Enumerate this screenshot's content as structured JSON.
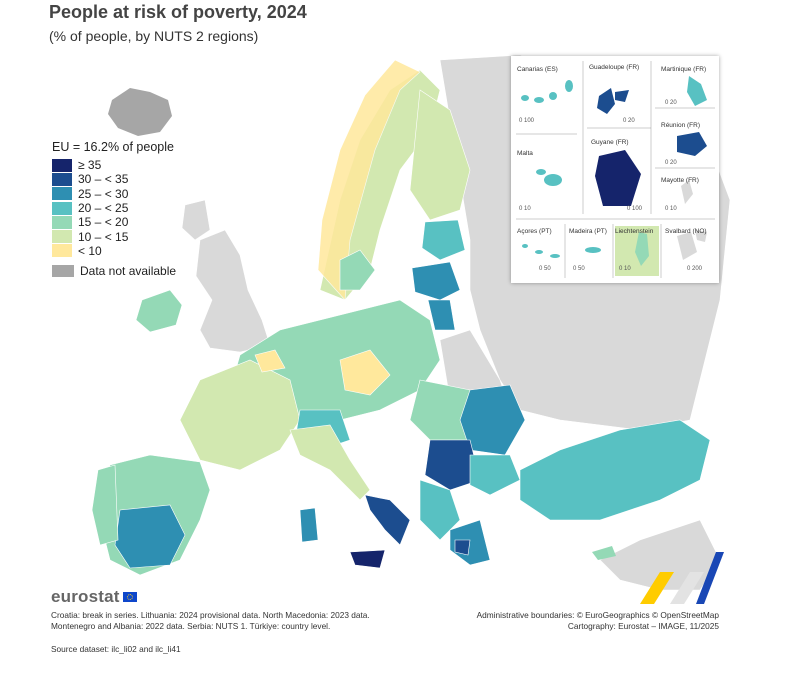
{
  "title": "People at risk of poverty, 2024",
  "subtitle": "(% of people, by NUTS 2 regions)",
  "legend": {
    "eu_average": "EU = 16.2% of people",
    "classes": [
      {
        "label": "≥ 35",
        "color": "#15246b"
      },
      {
        "label": "30 – < 35",
        "color": "#1c4d8f"
      },
      {
        "label": "25 – < 30",
        "color": "#2e8fb2"
      },
      {
        "label": "20 – < 25",
        "color": "#58c1c2"
      },
      {
        "label": "15 – < 20",
        "color": "#94d9b6"
      },
      {
        "label": "10 – < 15",
        "color": "#d2e8b0"
      },
      {
        "label": "< 10",
        "color": "#ffe89c"
      }
    ],
    "not_available": {
      "label": "Data not available",
      "color": "#a6a6a6"
    }
  },
  "insets": {
    "canarias": "Canarias (ES)",
    "guadeloupe": "Guadeloupe (FR)",
    "martinique": "Martinique (FR)",
    "reunion": "Réunion (FR)",
    "malta": "Malta",
    "guyane": "Guyane (FR)",
    "mayotte": "Mayotte (FR)",
    "acores": "Açores (PT)",
    "madeira": "Madeira (PT)",
    "liechtenstein": "Liechtenstein",
    "svalbard": "Svalbard (NO)",
    "scales": {
      "canarias": "0   100",
      "guadeloupe": "0   20",
      "martinique": "0   20",
      "reunion": "0   20",
      "malta": "0   10",
      "guyane": "0   100",
      "mayotte": "0   10",
      "acores": "0   50",
      "madeira": "0   50",
      "liechtenstein": "0   10",
      "svalbard": "0   200"
    }
  },
  "logo": "eurostat",
  "footnote": "Croatia: break in series. Lithuania: 2024 provisional data. North Macedonia: 2023 data. Montenegro and Albania: 2022 data. Serbia: NUTS 1. Türkiye: country level.",
  "source": "Source dataset: ilc_li02 and ilc_li41",
  "credits_line1": "Administrative boundaries: © EuroGeographics © OpenStreetMap",
  "credits_line2": "Cartography: Eurostat – IMAGE, 11/2025"
}
